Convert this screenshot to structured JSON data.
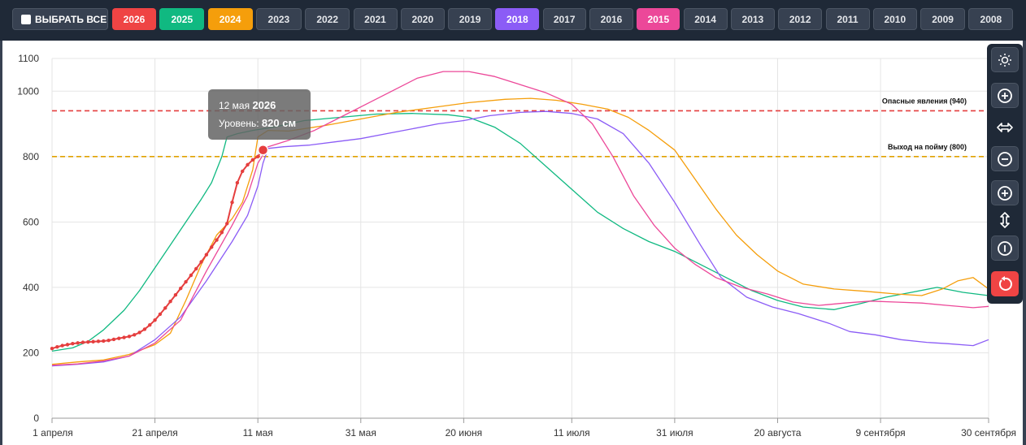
{
  "toolbar": {
    "select_all_label": "ВЫБРАТЬ ВСЕ",
    "years": [
      {
        "label": "2026",
        "active": true,
        "color": "#ef4444"
      },
      {
        "label": "2025",
        "active": true,
        "color": "#10b981"
      },
      {
        "label": "2024",
        "active": true,
        "color": "#f59e0b"
      },
      {
        "label": "2023",
        "active": false
      },
      {
        "label": "2022",
        "active": false
      },
      {
        "label": "2021",
        "active": false
      },
      {
        "label": "2020",
        "active": false
      },
      {
        "label": "2019",
        "active": false
      },
      {
        "label": "2018",
        "active": true,
        "color": "#8b5cf6"
      },
      {
        "label": "2017",
        "active": false
      },
      {
        "label": "2016",
        "active": false
      },
      {
        "label": "2015",
        "active": true,
        "color": "#ec4899"
      },
      {
        "label": "2014",
        "active": false
      },
      {
        "label": "2013",
        "active": false
      },
      {
        "label": "2012",
        "active": false
      },
      {
        "label": "2011",
        "active": false
      },
      {
        "label": "2010",
        "active": false
      },
      {
        "label": "2009",
        "active": false
      },
      {
        "label": "2008",
        "active": false
      }
    ]
  },
  "tooltip": {
    "date_prefix": "12 мая",
    "year": "2026",
    "level_label": "Уровень:",
    "level_value": "820 см"
  },
  "sidebar": {
    "buttons": [
      {
        "name": "theme-toggle-button",
        "icon": "sun-icon"
      },
      {
        "name": "zoom-in-x-button",
        "icon": "plus-circle-icon"
      },
      {
        "name": "horizontal-axis-label",
        "icon": "horizontal-arrows-icon"
      },
      {
        "name": "zoom-out-x-button",
        "icon": "minus-circle-icon"
      },
      {
        "name": "zoom-in-y-button",
        "icon": "plus-circle-icon"
      },
      {
        "name": "vertical-axis-label",
        "icon": "vertical-arrows-icon"
      },
      {
        "name": "zoom-out-y-button",
        "icon": "minus-circle-icon"
      },
      {
        "name": "reset-zoom-button",
        "icon": "reset-icon"
      }
    ]
  },
  "chart_data": {
    "type": "line",
    "title": "",
    "xlabel": "",
    "ylabel": "",
    "ylim": [
      0,
      1100
    ],
    "yticks": [
      0,
      200,
      400,
      600,
      800,
      1000,
      1100
    ],
    "x_domain": [
      "2026-04-01",
      "2026-09-30"
    ],
    "x_ticks": [
      {
        "date": "2026-04-01",
        "label": "1 апреля"
      },
      {
        "date": "2026-04-21",
        "label": "21 апреля"
      },
      {
        "date": "2026-05-11",
        "label": "11 мая"
      },
      {
        "date": "2026-05-31",
        "label": "31 мая"
      },
      {
        "date": "2026-06-20",
        "label": "20 июня"
      },
      {
        "date": "2026-07-11",
        "label": "11 июля"
      },
      {
        "date": "2026-07-31",
        "label": "31 июля"
      },
      {
        "date": "2026-08-20",
        "label": "20 августа"
      },
      {
        "date": "2026-09-09",
        "label": "9 сентября"
      },
      {
        "date": "2026-09-30",
        "label": "30 сентября"
      }
    ],
    "grid": true,
    "reference_lines": [
      {
        "value": 940,
        "label": "Опасные явления (940)",
        "color": "#e53e3e"
      },
      {
        "value": 800,
        "label": "Выход на пойму (800)",
        "color": "#e0a100"
      }
    ],
    "series": [
      {
        "name": "2025",
        "color": "#10b981",
        "points": [
          [
            "2026-04-01",
            205
          ],
          [
            "2026-04-05",
            215
          ],
          [
            "2026-04-08",
            235
          ],
          [
            "2026-04-11",
            270
          ],
          [
            "2026-04-15",
            330
          ],
          [
            "2026-04-18",
            390
          ],
          [
            "2026-04-21",
            460
          ],
          [
            "2026-04-24",
            530
          ],
          [
            "2026-04-27",
            600
          ],
          [
            "2026-04-30",
            670
          ],
          [
            "2026-05-02",
            720
          ],
          [
            "2026-05-04",
            800
          ],
          [
            "2026-05-05",
            860
          ],
          [
            "2026-05-07",
            870
          ],
          [
            "2026-05-10",
            880
          ],
          [
            "2026-05-14",
            890
          ],
          [
            "2026-05-20",
            910
          ],
          [
            "2026-05-27",
            920
          ],
          [
            "2026-06-03",
            930
          ],
          [
            "2026-06-10",
            932
          ],
          [
            "2026-06-17",
            928
          ],
          [
            "2026-06-21",
            920
          ],
          [
            "2026-06-26",
            890
          ],
          [
            "2026-07-01",
            840
          ],
          [
            "2026-07-06",
            770
          ],
          [
            "2026-07-11",
            700
          ],
          [
            "2026-07-16",
            630
          ],
          [
            "2026-07-21",
            580
          ],
          [
            "2026-07-26",
            540
          ],
          [
            "2026-07-31",
            510
          ],
          [
            "2026-08-05",
            470
          ],
          [
            "2026-08-10",
            430
          ],
          [
            "2026-08-15",
            390
          ],
          [
            "2026-08-20",
            360
          ],
          [
            "2026-08-25",
            340
          ],
          [
            "2026-08-31",
            332
          ],
          [
            "2026-09-05",
            350
          ],
          [
            "2026-09-10",
            370
          ],
          [
            "2026-09-15",
            385
          ],
          [
            "2026-09-20",
            400
          ],
          [
            "2026-09-25",
            385
          ],
          [
            "2026-09-30",
            375
          ]
        ]
      },
      {
        "name": "2024",
        "color": "#f59e0b",
        "points": [
          [
            "2026-04-01",
            165
          ],
          [
            "2026-04-06",
            172
          ],
          [
            "2026-04-11",
            178
          ],
          [
            "2026-04-16",
            195
          ],
          [
            "2026-04-21",
            225
          ],
          [
            "2026-04-24",
            260
          ],
          [
            "2026-04-27",
            360
          ],
          [
            "2026-04-30",
            470
          ],
          [
            "2026-05-03",
            560
          ],
          [
            "2026-05-06",
            610
          ],
          [
            "2026-05-08",
            660
          ],
          [
            "2026-05-10",
            760
          ],
          [
            "2026-05-11",
            860
          ],
          [
            "2026-05-13",
            880
          ],
          [
            "2026-05-17",
            878
          ],
          [
            "2026-05-24",
            895
          ],
          [
            "2026-05-31",
            915
          ],
          [
            "2026-06-07",
            935
          ],
          [
            "2026-06-14",
            950
          ],
          [
            "2026-06-21",
            965
          ],
          [
            "2026-06-28",
            975
          ],
          [
            "2026-07-03",
            978
          ],
          [
            "2026-07-08",
            972
          ],
          [
            "2026-07-13",
            960
          ],
          [
            "2026-07-18",
            945
          ],
          [
            "2026-07-22",
            920
          ],
          [
            "2026-07-26",
            880
          ],
          [
            "2026-07-31",
            820
          ],
          [
            "2026-08-04",
            730
          ],
          [
            "2026-08-08",
            640
          ],
          [
            "2026-08-12",
            560
          ],
          [
            "2026-08-16",
            500
          ],
          [
            "2026-08-20",
            450
          ],
          [
            "2026-08-25",
            410
          ],
          [
            "2026-08-31",
            395
          ],
          [
            "2026-09-06",
            388
          ],
          [
            "2026-09-12",
            380
          ],
          [
            "2026-09-17",
            375
          ],
          [
            "2026-09-21",
            395
          ],
          [
            "2026-09-24",
            420
          ],
          [
            "2026-09-27",
            430
          ],
          [
            "2026-09-30",
            395
          ]
        ]
      },
      {
        "name": "2018",
        "color": "#8b5cf6",
        "points": [
          [
            "2026-04-01",
            160
          ],
          [
            "2026-04-06",
            165
          ],
          [
            "2026-04-11",
            172
          ],
          [
            "2026-04-16",
            190
          ],
          [
            "2026-04-21",
            240
          ],
          [
            "2026-04-26",
            310
          ],
          [
            "2026-05-01",
            420
          ],
          [
            "2026-05-06",
            540
          ],
          [
            "2026-05-09",
            620
          ],
          [
            "2026-05-11",
            710
          ],
          [
            "2026-05-12",
            780
          ],
          [
            "2026-05-13",
            825
          ],
          [
            "2026-05-16",
            830
          ],
          [
            "2026-05-21",
            835
          ],
          [
            "2026-05-26",
            845
          ],
          [
            "2026-05-31",
            855
          ],
          [
            "2026-06-05",
            870
          ],
          [
            "2026-06-10",
            885
          ],
          [
            "2026-06-15",
            900
          ],
          [
            "2026-06-20",
            910
          ],
          [
            "2026-06-25",
            925
          ],
          [
            "2026-07-01",
            935
          ],
          [
            "2026-07-06",
            938
          ],
          [
            "2026-07-11",
            932
          ],
          [
            "2026-07-16",
            915
          ],
          [
            "2026-07-21",
            870
          ],
          [
            "2026-07-26",
            780
          ],
          [
            "2026-07-31",
            660
          ],
          [
            "2026-08-05",
            530
          ],
          [
            "2026-08-09",
            430
          ],
          [
            "2026-08-14",
            370
          ],
          [
            "2026-08-19",
            340
          ],
          [
            "2026-08-24",
            320
          ],
          [
            "2026-08-30",
            290
          ],
          [
            "2026-09-03",
            265
          ],
          [
            "2026-09-08",
            255
          ],
          [
            "2026-09-13",
            240
          ],
          [
            "2026-09-18",
            232
          ],
          [
            "2026-09-22",
            228
          ],
          [
            "2026-09-27",
            222
          ],
          [
            "2026-09-30",
            240
          ]
        ]
      },
      {
        "name": "2015",
        "color": "#ec4899",
        "points": [
          [
            "2026-04-01",
            162
          ],
          [
            "2026-04-06",
            166
          ],
          [
            "2026-04-11",
            175
          ],
          [
            "2026-04-16",
            190
          ],
          [
            "2026-04-21",
            230
          ],
          [
            "2026-04-26",
            300
          ],
          [
            "2026-05-01",
            450
          ],
          [
            "2026-05-06",
            590
          ],
          [
            "2026-05-09",
            680
          ],
          [
            "2026-05-11",
            780
          ],
          [
            "2026-05-13",
            830
          ],
          [
            "2026-05-17",
            850
          ],
          [
            "2026-05-22",
            880
          ],
          [
            "2026-05-27",
            920
          ],
          [
            "2026-06-01",
            960
          ],
          [
            "2026-06-06",
            1000
          ],
          [
            "2026-06-11",
            1040
          ],
          [
            "2026-06-16",
            1060
          ],
          [
            "2026-06-21",
            1060
          ],
          [
            "2026-06-26",
            1045
          ],
          [
            "2026-07-01",
            1020
          ],
          [
            "2026-07-06",
            995
          ],
          [
            "2026-07-11",
            960
          ],
          [
            "2026-07-15",
            900
          ],
          [
            "2026-07-19",
            800
          ],
          [
            "2026-07-23",
            680
          ],
          [
            "2026-07-27",
            590
          ],
          [
            "2026-07-31",
            520
          ],
          [
            "2026-08-04",
            470
          ],
          [
            "2026-08-08",
            430
          ],
          [
            "2026-08-13",
            400
          ],
          [
            "2026-08-18",
            380
          ],
          [
            "2026-08-23",
            355
          ],
          [
            "2026-08-28",
            345
          ],
          [
            "2026-09-02",
            352
          ],
          [
            "2026-09-07",
            358
          ],
          [
            "2026-09-12",
            355
          ],
          [
            "2026-09-17",
            352
          ],
          [
            "2026-09-22",
            345
          ],
          [
            "2026-09-27",
            338
          ],
          [
            "2026-09-30",
            342
          ]
        ]
      },
      {
        "name": "2026",
        "color": "#e53e3e",
        "markers": true,
        "points": [
          [
            "2026-04-01",
            213
          ],
          [
            "2026-04-02",
            218
          ],
          [
            "2026-04-03",
            222
          ],
          [
            "2026-04-04",
            225
          ],
          [
            "2026-04-05",
            228
          ],
          [
            "2026-04-06",
            230
          ],
          [
            "2026-04-07",
            232
          ],
          [
            "2026-04-08",
            233
          ],
          [
            "2026-04-09",
            234
          ],
          [
            "2026-04-10",
            235
          ],
          [
            "2026-04-11",
            236
          ],
          [
            "2026-04-12",
            238
          ],
          [
            "2026-04-13",
            241
          ],
          [
            "2026-04-14",
            244
          ],
          [
            "2026-04-15",
            247
          ],
          [
            "2026-04-16",
            250
          ],
          [
            "2026-04-17",
            255
          ],
          [
            "2026-04-18",
            262
          ],
          [
            "2026-04-19",
            272
          ],
          [
            "2026-04-20",
            285
          ],
          [
            "2026-04-21",
            300
          ],
          [
            "2026-04-22",
            318
          ],
          [
            "2026-04-23",
            337
          ],
          [
            "2026-04-24",
            357
          ],
          [
            "2026-04-25",
            377
          ],
          [
            "2026-04-26",
            397
          ],
          [
            "2026-04-27",
            417
          ],
          [
            "2026-04-28",
            437
          ],
          [
            "2026-04-29",
            457
          ],
          [
            "2026-04-30",
            478
          ],
          [
            "2026-05-01",
            500
          ],
          [
            "2026-05-02",
            523
          ],
          [
            "2026-05-03",
            545
          ],
          [
            "2026-05-04",
            568
          ],
          [
            "2026-05-05",
            595
          ],
          [
            "2026-05-06",
            660
          ],
          [
            "2026-05-07",
            720
          ],
          [
            "2026-05-08",
            755
          ],
          [
            "2026-05-09",
            775
          ],
          [
            "2026-05-10",
            790
          ],
          [
            "2026-05-11",
            800
          ],
          [
            "2026-05-12",
            820
          ]
        ]
      }
    ]
  }
}
